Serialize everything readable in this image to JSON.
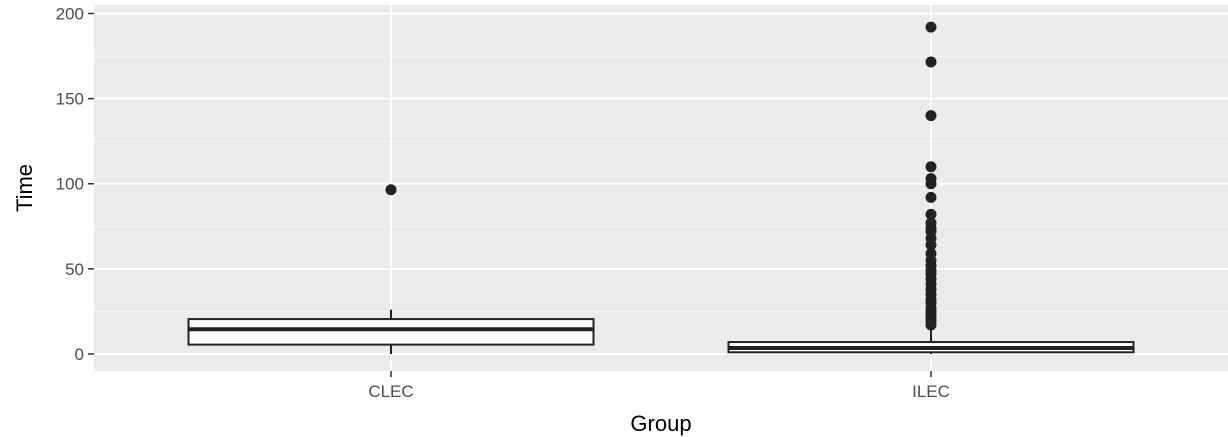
{
  "chart_data": {
    "type": "boxplot",
    "title": "",
    "xlabel": "Group",
    "ylabel": "Time",
    "ylim": [
      -10,
      205
    ],
    "yticks": [
      0,
      50,
      100,
      150,
      200
    ],
    "grid": true,
    "theme": "ggplot2 grey",
    "colors": {
      "panel_bg": "#ebebeb",
      "grid_major": "#ffffff",
      "grid_minor": "#f5f5f5",
      "box_fill": "#ffffff",
      "box_stroke": "#222222",
      "outlier": "#222222",
      "tick_text": "#4d4d4d"
    },
    "categories": [
      "CLEC",
      "ILEC"
    ],
    "boxes": [
      {
        "category": "CLEC",
        "whisker_low": 0,
        "q1": 5.5,
        "median": 14.5,
        "q3": 20.5,
        "whisker_high": 26,
        "outliers": [
          96.5
        ]
      },
      {
        "category": "ILEC",
        "whisker_low": 0,
        "q1": 1,
        "median": 3.5,
        "q3": 7,
        "whisker_high": 15,
        "outliers": [
          192,
          171.5,
          140,
          110,
          103,
          100,
          92,
          82,
          77,
          74,
          72,
          68,
          64,
          59,
          55,
          52,
          49,
          47,
          44,
          41,
          38,
          35,
          32,
          30,
          27,
          25,
          23,
          21,
          19,
          17
        ]
      }
    ]
  }
}
